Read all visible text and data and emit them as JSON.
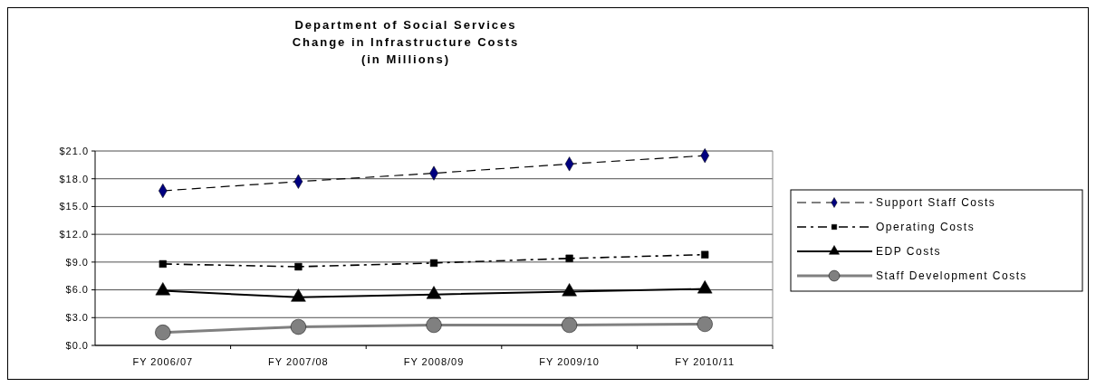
{
  "chart_data": {
    "type": "line",
    "title": "Department of Social Services\nChange in Infrastructure Costs\n(in Millions)",
    "categories": [
      "FY 2006/07",
      "FY 2007/08",
      "FY 2008/09",
      "FY 2009/10",
      "FY 2010/11"
    ],
    "series": [
      {
        "name": "Support Staff Costs",
        "color": "#000080",
        "values": [
          16.7,
          17.7,
          18.6,
          19.6,
          20.5
        ],
        "marker": "diamond",
        "line_style": "dashed"
      },
      {
        "name": "Operating Costs",
        "color": "#000000",
        "values": [
          8.8,
          8.5,
          8.9,
          9.4,
          9.8
        ],
        "marker": "square",
        "line_style": "dashdot"
      },
      {
        "name": "EDP Costs",
        "color": "#000000",
        "values": [
          5.9,
          5.2,
          5.5,
          5.8,
          6.1
        ],
        "marker": "triangle",
        "line_style": "solid"
      },
      {
        "name": "Staff Development Costs",
        "color": "#808080",
        "values": [
          1.4,
          2.0,
          2.2,
          2.2,
          2.3
        ],
        "marker": "circle",
        "line_style": "solid"
      }
    ],
    "ylim": [
      0,
      21
    ],
    "yticks": [
      {
        "value": 0,
        "label": "$0.0"
      },
      {
        "value": 3,
        "label": "$3.0"
      },
      {
        "value": 6,
        "label": "$6.0"
      },
      {
        "value": 9,
        "label": "$9.0"
      },
      {
        "value": 12,
        "label": "$12.0"
      },
      {
        "value": 15,
        "label": "$15.0"
      },
      {
        "value": 18,
        "label": "$18.0"
      },
      {
        "value": 21,
        "label": "$21.0"
      }
    ],
    "grid": "y",
    "legend": "right"
  }
}
